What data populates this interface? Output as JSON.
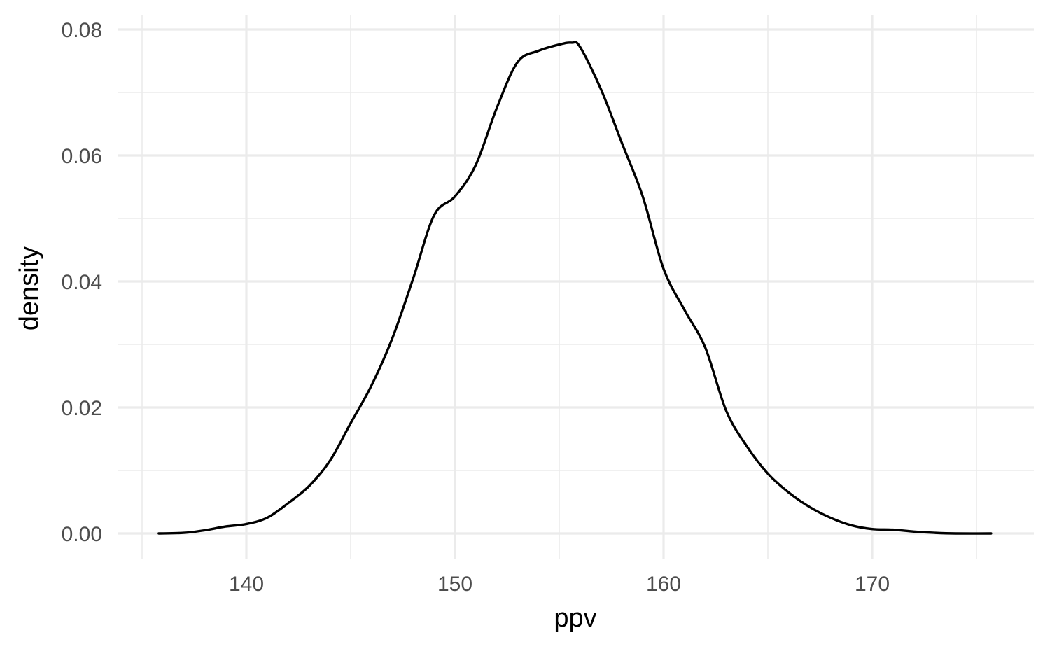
{
  "chart_data": {
    "type": "line",
    "title": "",
    "xlabel": "ppv",
    "ylabel": "density",
    "xlim": [
      135,
      176
    ],
    "ylim": [
      0,
      0.08
    ],
    "x_ticks": [
      140,
      150,
      160,
      170
    ],
    "x_tick_labels": [
      "140",
      "150",
      "160",
      "170"
    ],
    "x_minor_ticks": [
      135,
      145,
      155,
      165,
      175
    ],
    "y_ticks": [
      0,
      0.02,
      0.04,
      0.06,
      0.08
    ],
    "y_tick_labels": [
      "0.00",
      "0.02",
      "0.04",
      "0.06",
      "0.08"
    ],
    "y_minor_ticks": [
      0.01,
      0.03,
      0.05,
      0.07
    ],
    "grid": true,
    "legend": "none",
    "colors": {
      "line": "#000000",
      "grid": "#ebebeb",
      "tick_text": "#4d4d4d"
    },
    "series": [
      {
        "name": "ppv density",
        "x": [
          135.8,
          137.0,
          138.0,
          139.0,
          140.0,
          141.0,
          142.0,
          143.0,
          144.0,
          145.0,
          146.0,
          147.0,
          148.0,
          149.0,
          150.0,
          151.0,
          152.0,
          153.0,
          154.0,
          155.0,
          155.6,
          156.0,
          157.0,
          158.0,
          159.0,
          160.0,
          161.0,
          162.0,
          163.0,
          164.0,
          165.0,
          166.0,
          167.0,
          168.0,
          169.0,
          170.0,
          171.0,
          172.0,
          173.0,
          174.0,
          175.7
        ],
        "y": [
          0.0,
          0.0001,
          0.0005,
          0.0011,
          0.0015,
          0.0025,
          0.0048,
          0.0075,
          0.0115,
          0.0175,
          0.0235,
          0.031,
          0.0405,
          0.0505,
          0.0535,
          0.0585,
          0.0675,
          0.0748,
          0.0766,
          0.0776,
          0.0779,
          0.0772,
          0.0705,
          0.062,
          0.0535,
          0.042,
          0.0355,
          0.0295,
          0.0195,
          0.0138,
          0.0095,
          0.0065,
          0.0042,
          0.0025,
          0.0013,
          0.0007,
          0.0006,
          0.0003,
          0.0001,
          0.0,
          0.0
        ]
      }
    ]
  }
}
